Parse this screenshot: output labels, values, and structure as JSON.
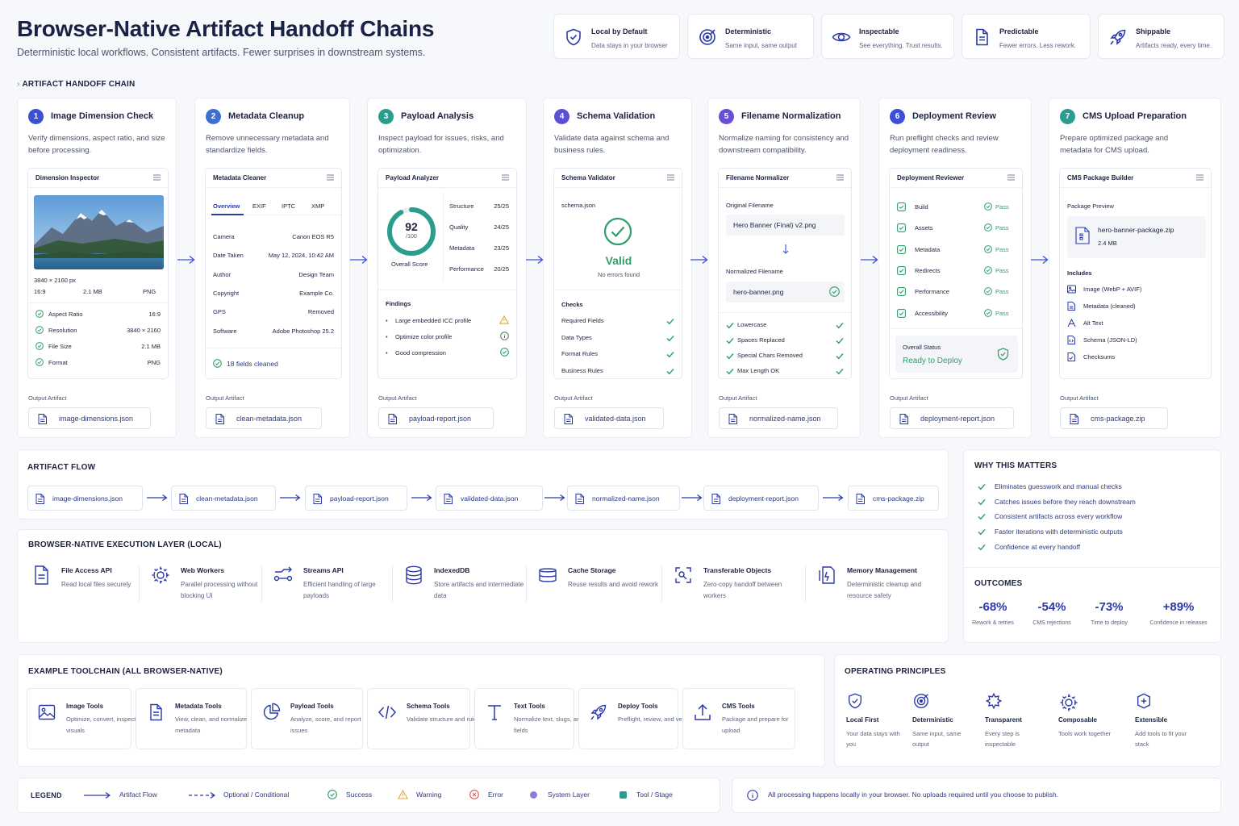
{
  "header": {
    "title": "Browser-Native Artifact Handoff Chains",
    "subtitle": "Deterministic local workflows. Consistent artifacts. Fewer surprises in downstream systems."
  },
  "features": [
    {
      "icon": "shield-check-icon",
      "title": "Local by Default",
      "sub": "Data stays in your browser"
    },
    {
      "icon": "target-icon",
      "title": "Deterministic",
      "sub": "Same input, same output"
    },
    {
      "icon": "eye-icon",
      "title": "Inspectable",
      "sub": "See everything. Trust results."
    },
    {
      "icon": "document-icon",
      "title": "Predictable",
      "sub": "Fewer errors. Less rework."
    },
    {
      "icon": "rocket-icon",
      "title": "Shippable",
      "sub": "Artifacts ready, every time."
    }
  ],
  "chain_label": "ARTIFACT HANDOFF CHAIN",
  "output_label": "Output Artifact",
  "stages": [
    {
      "num": "1",
      "color": "#3b4fd8",
      "title": "Image Dimension Check",
      "desc": "Verify dimensions, aspect ratio, and size before processing.",
      "panel": "Dimension Inspector",
      "output": "image-dimensions.json"
    },
    {
      "num": "2",
      "color": "#3d6fd6",
      "title": "Metadata Cleanup",
      "desc": "Remove unnecessary metadata and standardize fields.",
      "panel": "Metadata Cleaner",
      "output": "clean-metadata.json"
    },
    {
      "num": "3",
      "color": "#2a9d8f",
      "title": "Payload Analysis",
      "desc": "Inspect payload for issues, risks, and optimization.",
      "panel": "Payload Analyzer",
      "output": "payload-report.json"
    },
    {
      "num": "4",
      "color": "#5b4fd6",
      "title": "Schema Validation",
      "desc": "Validate data against schema and business rules.",
      "panel": "Schema Validator",
      "output": "validated-data.json"
    },
    {
      "num": "5",
      "color": "#6a4fd6",
      "title": "Filename Normalization",
      "desc": "Normalize naming for consistency and downstream compatibility.",
      "panel": "Filename Normalizer",
      "output": "normalized-name.json"
    },
    {
      "num": "6",
      "color": "#3b4fd8",
      "title": "Deployment Review",
      "desc": "Run preflight checks and review deployment readiness.",
      "panel": "Deployment Reviewer",
      "output": "deployment-report.json"
    },
    {
      "num": "7",
      "color": "#2a9d8f",
      "title": "CMS Upload Preparation",
      "desc": "Prepare optimized package and metadata for CMS upload.",
      "panel": "CMS Package Builder",
      "output": "cms-package.zip"
    }
  ],
  "dimension": {
    "size_label": "3840 × 2160 px",
    "ratio": "16:9",
    "filesize": "2.1 MB",
    "format": "PNG",
    "checks": [
      {
        "label": "Aspect Ratio",
        "value": "16:9"
      },
      {
        "label": "Resolution",
        "value": "3840 × 2160"
      },
      {
        "label": "File Size",
        "value": "2.1 MB"
      },
      {
        "label": "Format",
        "value": "PNG"
      }
    ]
  },
  "metadata": {
    "tabs": [
      "Overview",
      "EXIF",
      "IPTC",
      "XMP"
    ],
    "rows": [
      {
        "label": "Camera",
        "value": "Canon EOS R5"
      },
      {
        "label": "Date Taken",
        "value": "May 12, 2024, 10:42 AM"
      },
      {
        "label": "Author",
        "value": "Design Team"
      },
      {
        "label": "Copyright",
        "value": "Example Co."
      },
      {
        "label": "GPS",
        "value": "Removed"
      },
      {
        "label": "Software",
        "value": "Adobe Photoshop 25.2"
      }
    ],
    "cleaned": "18 fields cleaned"
  },
  "payload": {
    "score": "92",
    "score_max": "/100",
    "score_label": "Overall Score",
    "score_fraction": 0.92,
    "metrics": [
      {
        "label": "Structure",
        "value": "25/25"
      },
      {
        "label": "Quality",
        "value": "24/25"
      },
      {
        "label": "Metadata",
        "value": "23/25"
      },
      {
        "label": "Performance",
        "value": "20/25"
      }
    ],
    "findings_label": "Findings",
    "findings": [
      {
        "label": "Large embedded ICC profile",
        "status": "warning"
      },
      {
        "label": "Optimize color profile",
        "status": "info"
      },
      {
        "label": "Good compression",
        "status": "success"
      }
    ]
  },
  "schema": {
    "file": "schema.json",
    "status": "Valid",
    "status_sub": "No errors found",
    "checks_label": "Checks",
    "checks": [
      "Required Fields",
      "Data Types",
      "Format Rules",
      "Business Rules"
    ]
  },
  "filename": {
    "original_label": "Original Filename",
    "original": "Hero Banner (Final) v2.png",
    "normalized_label": "Normalized Filename",
    "normalized": "hero-banner.png",
    "checks": [
      "Lowercase",
      "Spaces Replaced",
      "Special Chars Removed",
      "Max Length OK"
    ]
  },
  "deploy": {
    "checks": [
      {
        "label": "Build",
        "status": "Pass"
      },
      {
        "label": "Assets",
        "status": "Pass"
      },
      {
        "label": "Metadata",
        "status": "Pass"
      },
      {
        "label": "Redirects",
        "status": "Pass"
      },
      {
        "label": "Performance",
        "status": "Pass"
      },
      {
        "label": "Accessibility",
        "status": "Pass"
      }
    ],
    "overall_label": "Overall Status",
    "overall": "Ready to Deploy"
  },
  "cms": {
    "preview_label": "Package Preview",
    "file": "hero-banner-package.zip",
    "size": "2.4 MB",
    "includes_label": "Includes",
    "includes": [
      "Image (WebP + AVIF)",
      "Metadata (cleaned)",
      "Alt Text",
      "Schema (JSON-LD)",
      "Checksums"
    ]
  },
  "flow": {
    "label": "ARTIFACT FLOW",
    "items": [
      "image-dimensions.json",
      "clean-metadata.json",
      "payload-report.json",
      "validated-data.json",
      "normalized-name.json",
      "deployment-report.json",
      "cms-package.zip"
    ]
  },
  "exec": {
    "label": "BROWSER-NATIVE EXECUTION LAYER (LOCAL)",
    "items": [
      {
        "icon": "file-icon",
        "title": "File Access API",
        "sub": "Read local files securely"
      },
      {
        "icon": "gear-icon",
        "title": "Web Workers",
        "sub": "Parallel processing without blocking UI"
      },
      {
        "icon": "stream-icon",
        "title": "Streams API",
        "sub": "Efficient handling of large payloads"
      },
      {
        "icon": "database-icon",
        "title": "IndexedDB",
        "sub": "Store artifacts and intermediate data"
      },
      {
        "icon": "storage-icon",
        "title": "Cache Storage",
        "sub": "Reuse results and avoid rework"
      },
      {
        "icon": "transfer-icon",
        "title": "Transferable Objects",
        "sub": "Zero-copy handoff between workers"
      },
      {
        "icon": "memory-icon",
        "title": "Memory Management",
        "sub": "Deterministic cleanup and resource safety"
      }
    ]
  },
  "why": {
    "label": "WHY THIS MATTERS",
    "items": [
      "Eliminates guesswork and manual checks",
      "Catches issues before they reach downstream",
      "Consistent artifacts across every workflow",
      "Faster iterations with deterministic outputs",
      "Confidence at every handoff"
    ]
  },
  "outcomes": {
    "label": "OUTCOMES",
    "items": [
      {
        "value": "-68%",
        "label": "Rework & retries"
      },
      {
        "value": "-54%",
        "label": "CMS rejections"
      },
      {
        "value": "-73%",
        "label": "Time to deploy"
      },
      {
        "value": "+89%",
        "label": "Confidence in releases"
      }
    ]
  },
  "tools": {
    "label": "EXAMPLE TOOLCHAIN (ALL BROWSER-NATIVE)",
    "items": [
      {
        "icon": "image-icon",
        "title": "Image Tools",
        "sub": "Optimize, convert, inspect visuals"
      },
      {
        "icon": "document-icon",
        "title": "Metadata Tools",
        "sub": "View, clean, and normalize metadata"
      },
      {
        "icon": "pie-chart-icon",
        "title": "Payload Tools",
        "sub": "Analyze, score, and report issues"
      },
      {
        "icon": "code-icon",
        "title": "Schema Tools",
        "sub": "Validate structure and rules"
      },
      {
        "icon": "text-icon",
        "title": "Text Tools",
        "sub": "Normalize text, slugs, and fields"
      },
      {
        "icon": "rocket-icon",
        "title": "Deploy Tools",
        "sub": "Preflight, review, and verify"
      },
      {
        "icon": "upload-icon",
        "title": "CMS Tools",
        "sub": "Package and prepare for upload"
      }
    ]
  },
  "principles": {
    "label": "OPERATING PRINCIPLES",
    "items": [
      {
        "icon": "shield-check-icon",
        "title": "Local First",
        "sub": "Your data stays with you"
      },
      {
        "icon": "target-icon",
        "title": "Deterministic",
        "sub": "Same input, same output"
      },
      {
        "icon": "hand-icon",
        "title": "Transparent",
        "sub": "Every step is inspectable"
      },
      {
        "icon": "gear-icon",
        "title": "Composable",
        "sub": "Tools work together"
      },
      {
        "icon": "plus-shield-icon",
        "title": "Extensible",
        "sub": "Add tools to fit your stack"
      }
    ]
  },
  "legend": {
    "label": "LEGEND",
    "items": [
      "Artifact Flow",
      "Optional / Conditional",
      "Success",
      "Warning",
      "Error",
      "System Layer",
      "Tool / Stage"
    ]
  },
  "note": "All processing happens locally in your browser. No uploads required until you choose to publish.",
  "colors": {
    "accent": "#2b3aa8",
    "success": "#2f9e6a",
    "warning": "#e9a92a",
    "error": "#e25555",
    "system": "#8b7be0",
    "tool": "#2a9d8f"
  }
}
